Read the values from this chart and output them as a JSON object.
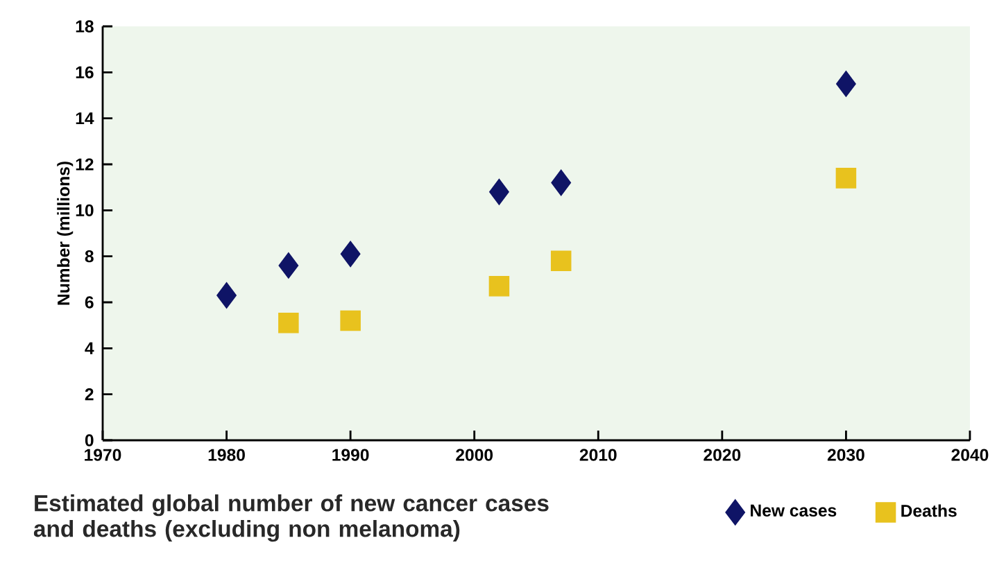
{
  "chart_data": {
    "type": "scatter",
    "title": "Estimated global number of new cancer cases and deaths (excluding non melanoma)",
    "ylabel": "Number (millions)",
    "series": [
      {
        "name": "New cases",
        "color": "#0f1466",
        "marker": "diamond",
        "x": [
          1980,
          1985,
          1990,
          2002,
          2007,
          2030
        ],
        "values": [
          6.3,
          7.6,
          8.1,
          10.8,
          11.2,
          15.5
        ]
      },
      {
        "name": "Deaths",
        "color": "#e8c21e",
        "marker": "square",
        "x": [
          1985,
          1990,
          2002,
          2007,
          2030
        ],
        "values": [
          5.1,
          5.2,
          6.7,
          7.8,
          11.4
        ]
      }
    ],
    "xlim": [
      1970,
      2040
    ],
    "xticks": [
      1970,
      1980,
      1990,
      2000,
      2010,
      2020,
      2030,
      2040
    ],
    "ylim": [
      0,
      18
    ],
    "yticks": [
      0,
      2,
      4,
      6,
      8,
      10,
      12,
      14,
      16,
      18
    ],
    "legend": "bottom right"
  }
}
